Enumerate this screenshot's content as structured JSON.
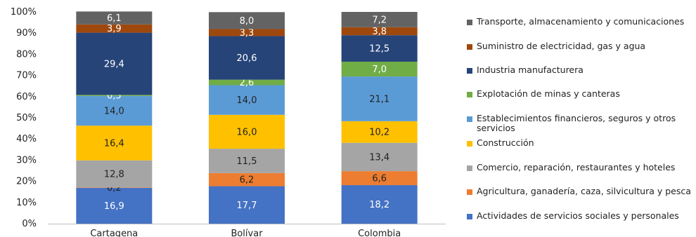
{
  "chart_data": {
    "type": "bar",
    "stacked": true,
    "categories": [
      "Cartagena",
      "Bolívar",
      "Colombia"
    ],
    "ylim": [
      0,
      100
    ],
    "yticks": [
      "0%",
      "10%",
      "20%",
      "30%",
      "40%",
      "50%",
      "60%",
      "70%",
      "80%",
      "90%",
      "100%"
    ],
    "legend_position": "right",
    "series": [
      {
        "name": "Actividades de servicios sociales y personales",
        "color": "#4472C4",
        "label_color": "#ffffff",
        "values": [
          16.9,
          17.7,
          18.2
        ],
        "labels": [
          "16,9",
          "17,7",
          "18,2"
        ]
      },
      {
        "name": "Agricultura, ganadería, caza, silvicultura y pesca",
        "color": "#ED7D31",
        "label_color": "#222222",
        "values": [
          0.2,
          6.2,
          6.6
        ],
        "labels": [
          "0,2",
          "6,2",
          "6,6"
        ]
      },
      {
        "name": "Comercio, reparación, restaurantes y hoteles",
        "color": "#A5A5A5",
        "label_color": "#222222",
        "values": [
          12.8,
          11.5,
          13.4
        ],
        "labels": [
          "12,8",
          "11,5",
          "13,4"
        ]
      },
      {
        "name": "Construcción",
        "color": "#FFC000",
        "label_color": "#222222",
        "values": [
          16.4,
          16.0,
          10.2
        ],
        "labels": [
          "16,4",
          "16,0",
          "10,2"
        ]
      },
      {
        "name": "Establecimientos financieros, seguros y otros servicios",
        "color": "#5B9BD5",
        "label_color": "#222222",
        "values": [
          14.0,
          14.0,
          21.1
        ],
        "labels": [
          "14,0",
          "14,0",
          "21,1"
        ]
      },
      {
        "name": "Explotación de minas y canteras",
        "color": "#70AD47",
        "label_color": "#ffffff",
        "values": [
          0.5,
          2.6,
          7.0
        ],
        "labels": [
          "0,5",
          "2,6",
          "7,0"
        ]
      },
      {
        "name": "Industria manufacturera",
        "color": "#264478",
        "label_color": "#ffffff",
        "values": [
          29.4,
          20.6,
          12.5
        ],
        "labels": [
          "29,4",
          "20,6",
          "12,5"
        ]
      },
      {
        "name": "Suministro de electricidad, gas y agua",
        "color": "#9E480E",
        "label_color": "#ffffff",
        "values": [
          3.9,
          3.3,
          3.8
        ],
        "labels": [
          "3,9",
          "3,3",
          "3,8"
        ]
      },
      {
        "name": "Transporte, almacenamiento y comunicaciones",
        "color": "#636363",
        "label_color": "#ffffff",
        "values": [
          6.1,
          8.0,
          7.2
        ],
        "labels": [
          "6,1",
          "8,0",
          "7,2"
        ]
      }
    ],
    "legend_order": [
      8,
      7,
      6,
      5,
      4,
      3,
      2,
      1,
      0
    ]
  }
}
